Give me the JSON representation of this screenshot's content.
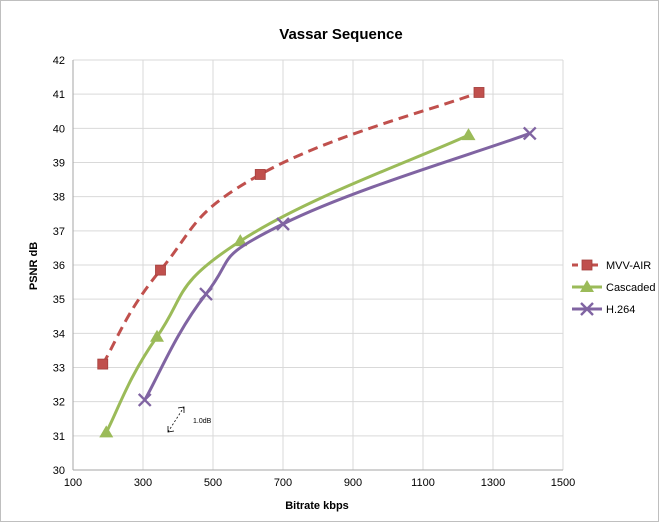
{
  "chart_data": {
    "type": "line",
    "title": "Vassar Sequence",
    "xlabel": "Bitrate kbps",
    "ylabel": "PSNR dB",
    "xlim": [
      100,
      1500
    ],
    "ylim": [
      30,
      42
    ],
    "xticks": [
      100,
      300,
      500,
      700,
      900,
      1100,
      1300,
      1500
    ],
    "yticks": [
      30,
      31,
      32,
      33,
      34,
      35,
      36,
      37,
      38,
      39,
      40,
      41,
      42
    ],
    "grid": true,
    "legend_position": "right",
    "annotation": "1.0dB",
    "series": [
      {
        "name": "MVV-AIR",
        "color": "#c0504d",
        "line_style": "dashed",
        "marker": "square",
        "x": [
          185,
          350,
          635,
          1260
        ],
        "y": [
          33.1,
          35.85,
          38.65,
          41.05
        ]
      },
      {
        "name": "Cascaded",
        "color": "#9bbb59",
        "line_style": "solid",
        "marker": "triangle",
        "x": [
          195,
          340,
          578,
          1230
        ],
        "y": [
          31.1,
          33.9,
          36.7,
          39.8
        ]
      },
      {
        "name": "H.264",
        "color": "#8064a2",
        "line_style": "solid",
        "marker": "x",
        "x": [
          305,
          480,
          700,
          1405
        ],
        "y": [
          32.05,
          35.15,
          37.2,
          39.85
        ]
      }
    ]
  }
}
